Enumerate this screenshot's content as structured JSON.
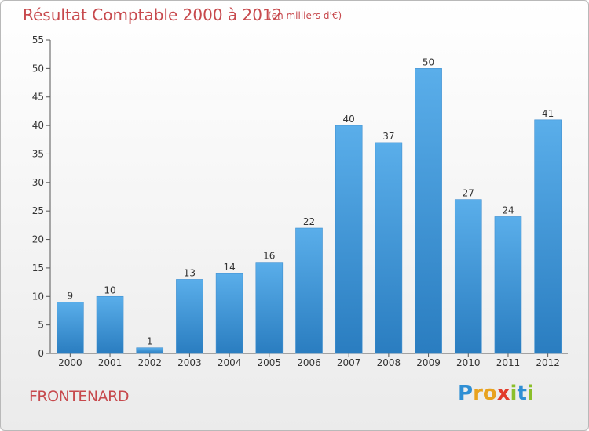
{
  "header": {
    "title": "Résultat Comptable 2000 à 2012",
    "subtitle": "(en milliers d'€)"
  },
  "footer": {
    "commune": "FRONTENARD",
    "logo": {
      "text": "Proxiti",
      "letters": [
        {
          "ch": "P",
          "color": "#2f8fd4"
        },
        {
          "ch": "r",
          "color": "#e8a21f"
        },
        {
          "ch": "o",
          "color": "#e8a21f"
        },
        {
          "ch": "x",
          "color": "#e23b2b"
        },
        {
          "ch": "i",
          "color": "#8bbf2a"
        },
        {
          "ch": "t",
          "color": "#2f8fd4"
        },
        {
          "ch": "i",
          "color": "#8bbf2a"
        }
      ]
    }
  },
  "chart_data": {
    "type": "bar",
    "categories": [
      "2000",
      "2001",
      "2002",
      "2003",
      "2004",
      "2005",
      "2006",
      "2007",
      "2008",
      "2009",
      "2010",
      "2011",
      "2012"
    ],
    "values": [
      9,
      10,
      1,
      13,
      14,
      16,
      22,
      40,
      37,
      50,
      27,
      24,
      41
    ],
    "ylim": [
      0,
      55
    ],
    "yticks": [
      0,
      5,
      10,
      15,
      20,
      25,
      30,
      35,
      40,
      45,
      50,
      55
    ],
    "grid": false,
    "data_labels": true,
    "bar_color_top": "#5aaeea",
    "bar_color_bottom": "#2a7dc0"
  }
}
